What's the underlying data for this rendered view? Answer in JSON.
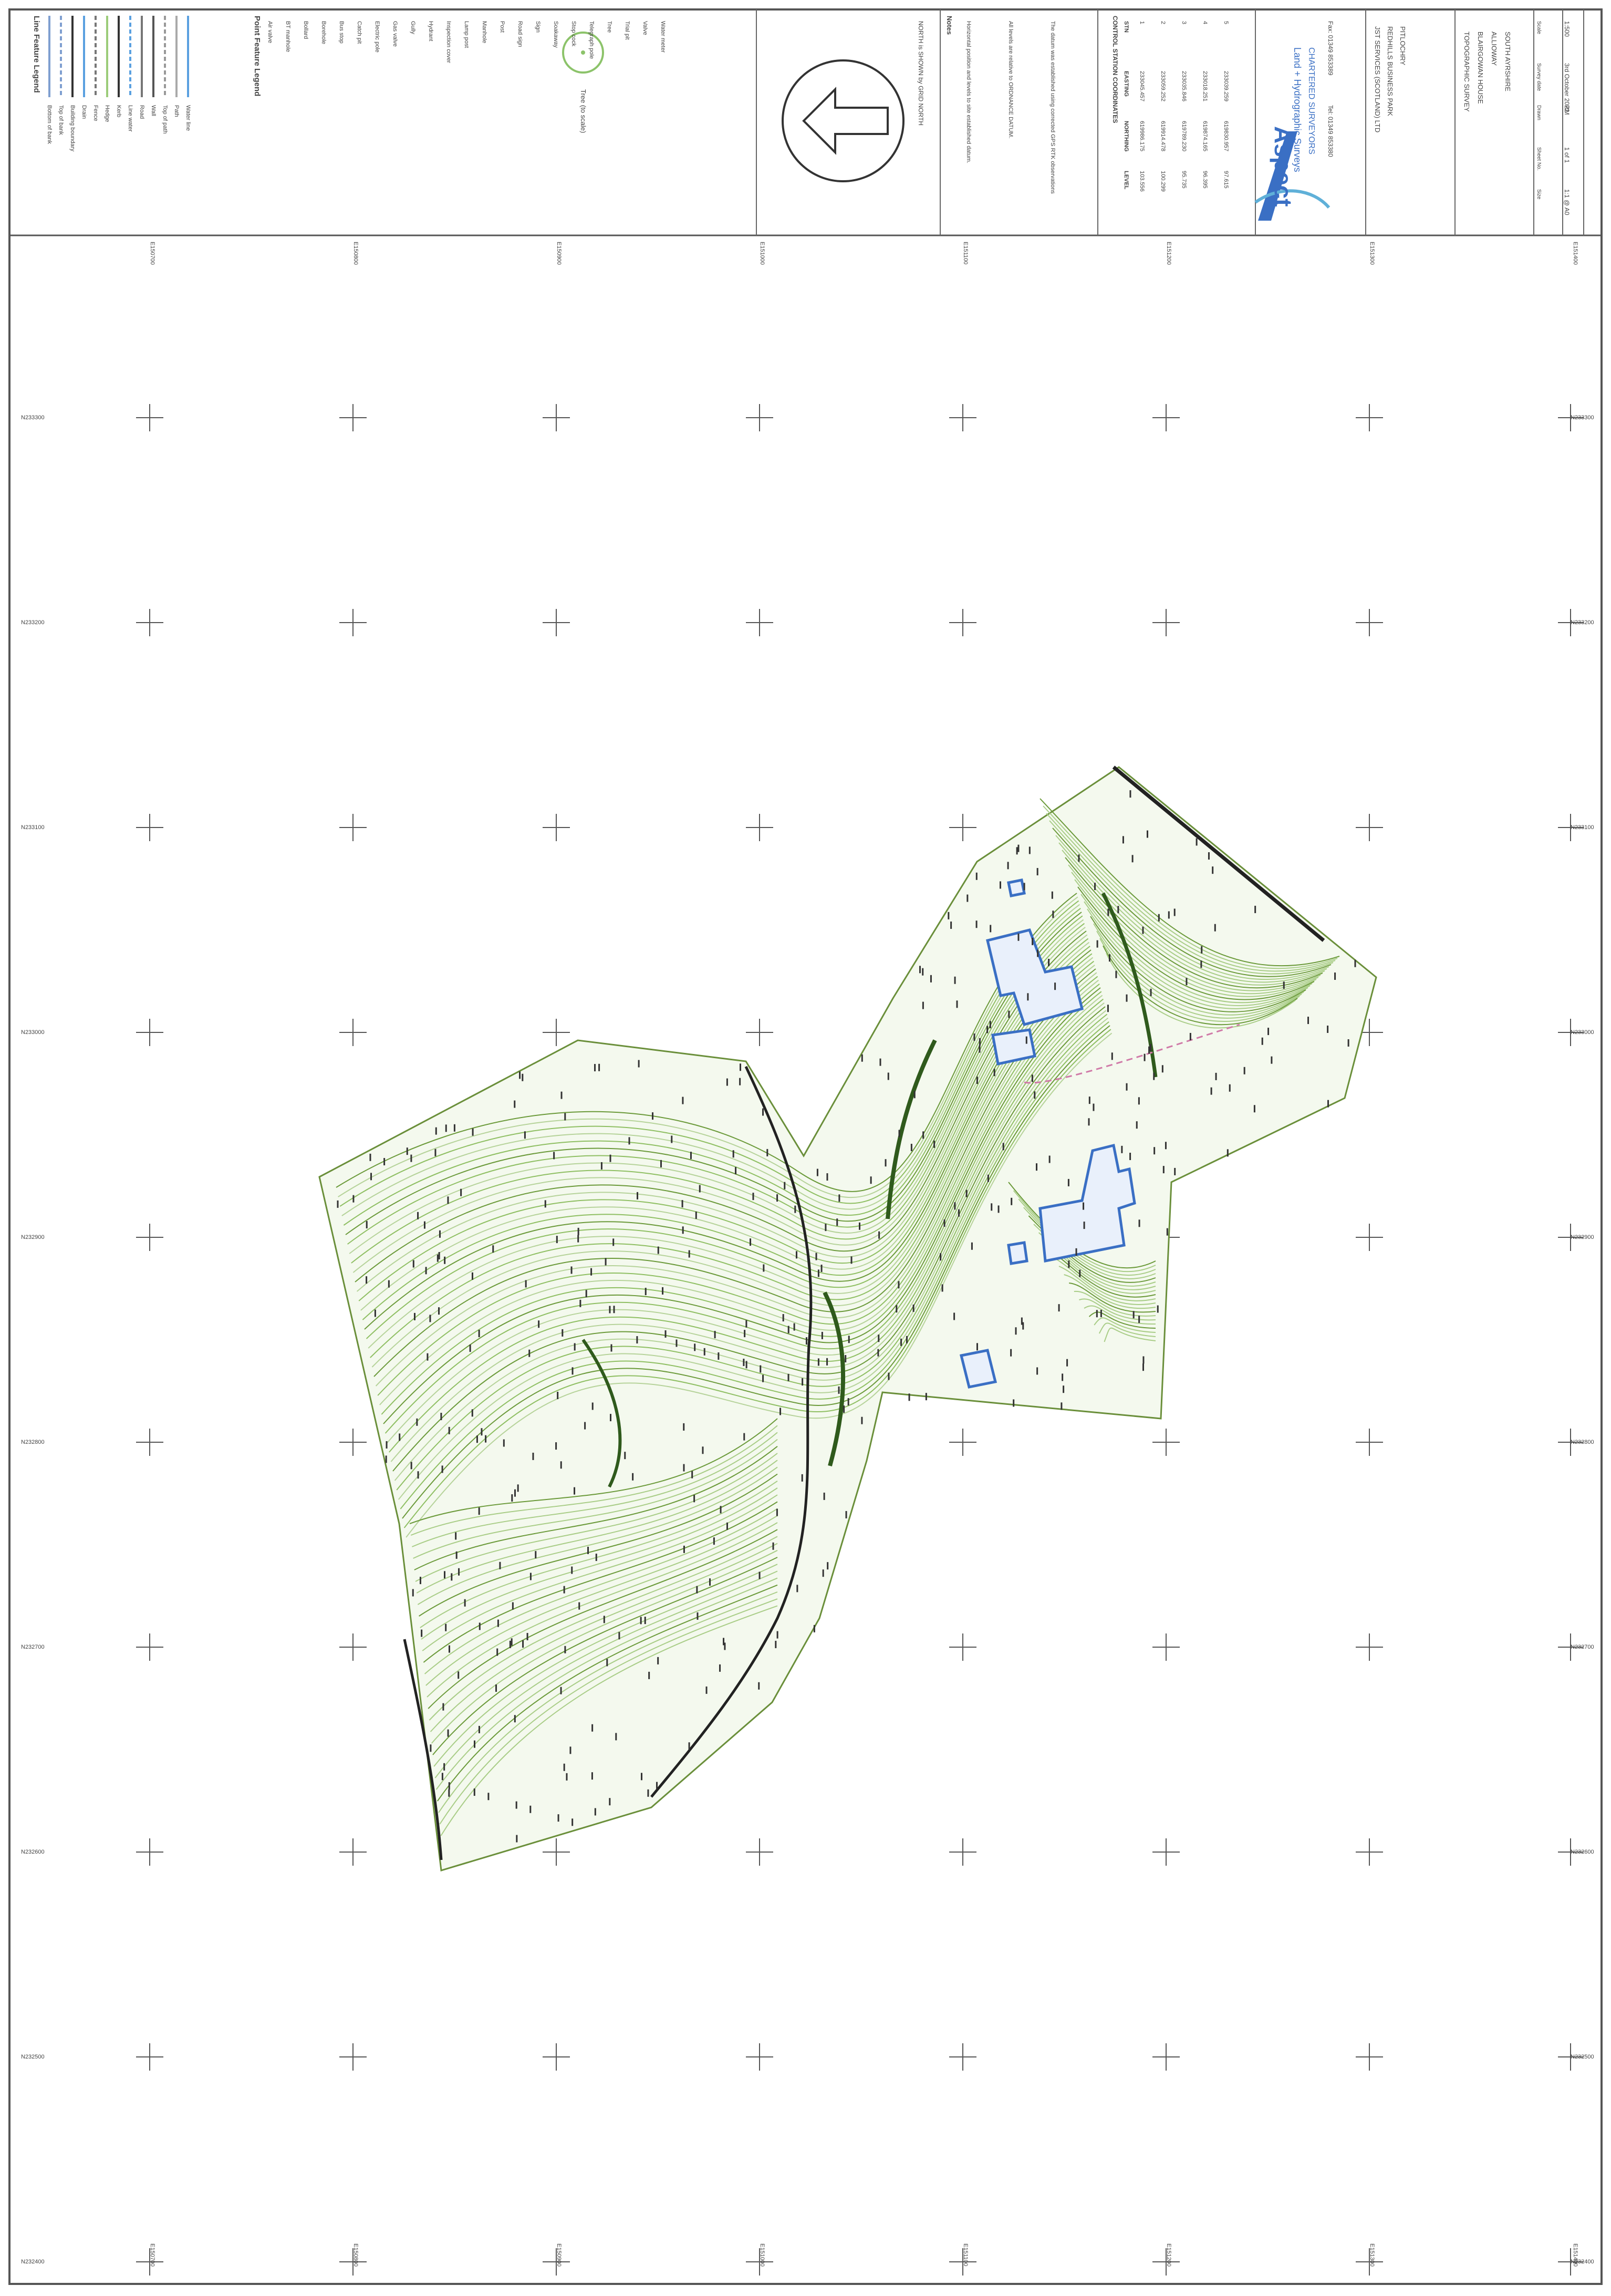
{
  "sheet": {
    "title_block": {
      "logo_word": "Aspect",
      "logo_tagline": "Land + Hydrographic Surveys",
      "logo_sub": "CHARTERED SURVEYORS",
      "tel": "Tel: 01349 853380",
      "fax": "Fax: 01349 853389",
      "client_lines": [
        "JST SERVICES (SCOTLAND) LTD",
        "REDHILLS BUSINESS PARK",
        "PITLOCHRY"
      ],
      "project_lines": [
        "TOPOGRAPHIC SURVEY",
        "BLAIRGOWAN HOUSE",
        "ALLIOWAY",
        "SOUTH AYRSHIRE"
      ],
      "cells": [
        {
          "label": "Scale",
          "value": "1:500"
        },
        {
          "label": "Survey date",
          "value": "3rd October 2022"
        },
        {
          "label": "Drawn",
          "value": "RM"
        },
        {
          "label": "Sheet No.",
          "value": "1 of 1"
        },
        {
          "label": "Size",
          "value": "1:1 @ A0"
        }
      ]
    },
    "north_arrow_label": "NORTH is SHOWN by GRID NORTH",
    "notes_header": "Notes",
    "notes": [
      "Horizontal position and levels to site established datum.",
      "All levels are relative to ORDNANCE DATUM.",
      "The datum was established using corrected GPS RTK observations"
    ],
    "control_table": {
      "title": "CONTROL STATION COORDINATES",
      "columns": [
        "STN",
        "EASTING",
        "NORTHING",
        "LEVEL"
      ],
      "rows": [
        [
          "1",
          "233045.457",
          "619986.175",
          "103.556"
        ],
        [
          "2",
          "233059.252",
          "619914.478",
          "100.299"
        ],
        [
          "3",
          "233035.846",
          "619789.230",
          "95.735"
        ],
        [
          "4",
          "233018.251",
          "619874.165",
          "96.395"
        ],
        [
          "5",
          "233039.259",
          "619830.957",
          "97.615"
        ]
      ]
    },
    "line_legend_title": "Line Feature Legend",
    "line_legend": [
      "Bottom of bank",
      "Top of bank",
      "Building boundary",
      "Drain",
      "Fence",
      "Hedge",
      "Kerb",
      "Line water",
      "Road",
      "Wall",
      "Top of path",
      "Path",
      "Water line"
    ],
    "point_legend_title": "Point Feature Legend",
    "point_legend": [
      "Air valve",
      "BT manhole",
      "Bollard",
      "Borehole",
      "Bus stop",
      "Catch pit",
      "Electric pole",
      "Gas valve",
      "Gully",
      "Hydrant",
      "Inspection cover",
      "Lamp post",
      "Manhole",
      "Post",
      "Road sign",
      "Sign",
      "Soakaway",
      "Stop cock",
      "Telegraph pole",
      "Tree",
      "Trial pit",
      "Valve",
      "Water meter"
    ],
    "tree_symbol_label": "Tree (to scale)",
    "grid_eastings_top": [
      "E150700",
      "E150800",
      "E150900",
      "E151000",
      "E151100",
      "E151200",
      "E151300",
      "E151400"
    ],
    "grid_eastings_bottom": [
      "E150700",
      "E150800",
      "E150900",
      "E151000",
      "E151100",
      "E151200",
      "E151300",
      "E151400"
    ],
    "grid_northings_left": [
      "N233300",
      "N233200",
      "N233100",
      "N233000",
      "N232900",
      "N232800",
      "N232700",
      "N232600",
      "N232500",
      "N232400",
      "N232300"
    ],
    "grid_northings_right": [
      "N233300",
      "N233200",
      "N233100",
      "N233000",
      "N232900",
      "N232800",
      "N232700",
      "N232600",
      "N232500",
      "N232400",
      "N232300"
    ]
  },
  "colors": {
    "contour_green": "#7fb04a",
    "contour_light": "#b6d39a",
    "building_blue": "#3a6fc4",
    "frame": "#555555",
    "feature_dark": "#222222"
  }
}
